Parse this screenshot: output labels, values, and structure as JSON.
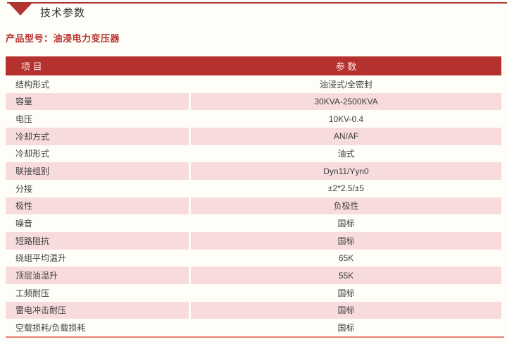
{
  "page": {
    "title": "技术参数",
    "product_model": "产品型号：油浸电力变压器"
  },
  "table": {
    "columns": {
      "item": "项 目",
      "value": "参 数"
    },
    "rows": [
      {
        "item": "结构形式",
        "value": "油浸式/全密封"
      },
      {
        "item": "容量",
        "value": "30KVA-2500KVA"
      },
      {
        "item": "电压",
        "value": "10KV-0.4"
      },
      {
        "item": "冷却方式",
        "value": "AN/AF"
      },
      {
        "item": "冷却形式",
        "value": "油式"
      },
      {
        "item": "联接组别",
        "value": "Dyn11/Yyn0"
      },
      {
        "item": "分接",
        "value": "±2*2.5/±5"
      },
      {
        "item": "极性",
        "value": "负极性"
      },
      {
        "item": "噪音",
        "value": "国标"
      },
      {
        "item": "短路阻抗",
        "value": "国标"
      },
      {
        "item": "绕组平均温升",
        "value": "65K"
      },
      {
        "item": "顶层油温升",
        "value": "55K"
      },
      {
        "item": "工频耐压",
        "value": "国标"
      },
      {
        "item": "雷电冲击耐压",
        "value": "国标"
      },
      {
        "item": "空载损耗/负载损耗",
        "value": "国标"
      }
    ]
  },
  "colors": {
    "brand_red": "#b5312d",
    "row_pink": "#f8dcdd",
    "accent_salmon": "#e28274",
    "top_line_red": "#a93531",
    "page_background": "#fffdf8"
  }
}
